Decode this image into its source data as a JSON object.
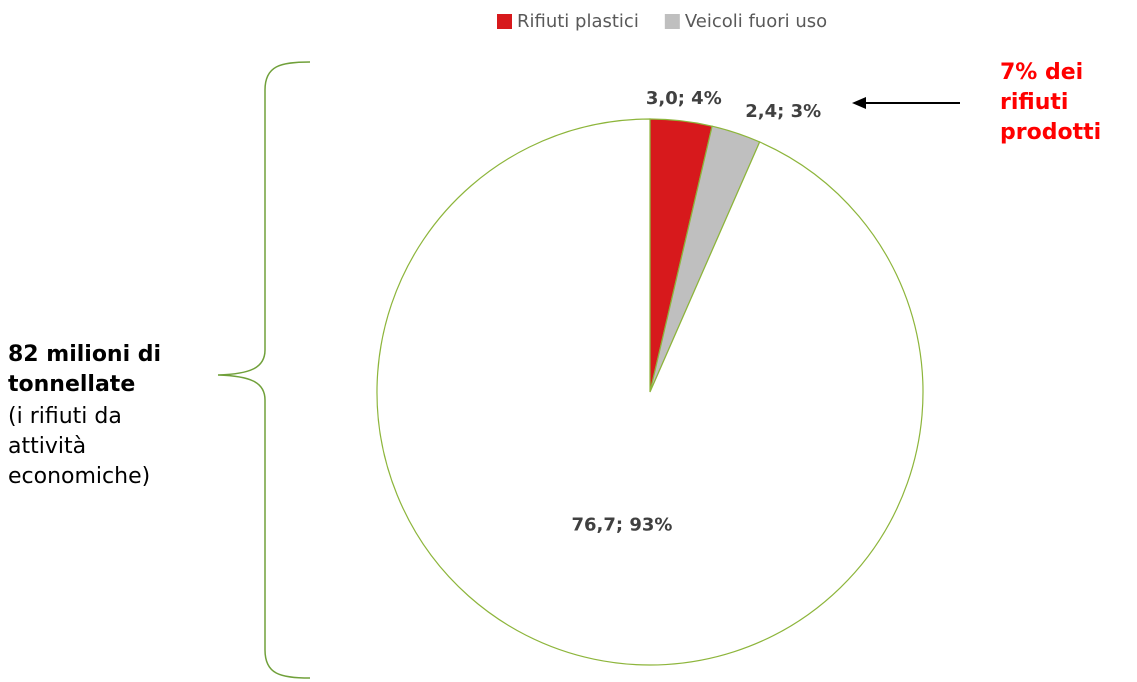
{
  "chart_data": {
    "type": "pie",
    "categories": [
      "Rifiuti plastici",
      "Veicoli fuori uso",
      null
    ],
    "values": [
      3.0,
      2.4,
      76.7
    ],
    "value_labels": [
      "3,0; 4%",
      "2,4; 3%",
      "76,7; 93%"
    ],
    "colors": [
      "#d7191c",
      "#bfbfbf",
      "#ffffff"
    ],
    "edge_color": "#8db53b",
    "legend": "top",
    "annotations": {
      "right": "7% dei rifiuti prodotti",
      "left_bold": "82 milioni di tonnellate",
      "left": "(i rifiuti da attività economiche)"
    }
  }
}
